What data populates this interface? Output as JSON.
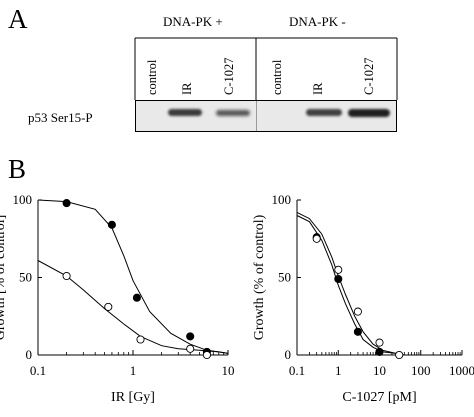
{
  "panel_a": {
    "letter": "A",
    "group1_header": "DNA-PK +",
    "group2_header": "DNA-PK -",
    "lanes": [
      "control",
      "IR",
      "C-1027",
      "control",
      "IR",
      "C-1027"
    ],
    "row_label": "p53 Ser15-P"
  },
  "panel_b": {
    "letter": "B"
  },
  "chart_data": [
    {
      "type": "scatter",
      "x_scale": "log",
      "xlim": [
        0.1,
        10
      ],
      "ylim": [
        0,
        100
      ],
      "xlabel": "IR [Gy]",
      "ylabel": "Growth [% of control]",
      "x_ticks": [
        "0.1",
        "1",
        "10"
      ],
      "y_ticks": [
        "0",
        "50",
        "100"
      ],
      "series": [
        {
          "marker": "filled",
          "points": [
            [
              0.2,
              98
            ],
            [
              0.6,
              84
            ],
            [
              1.1,
              37
            ],
            [
              4,
              12
            ],
            [
              6,
              2
            ]
          ],
          "fit": [
            [
              0.1,
              100
            ],
            [
              0.2,
              99
            ],
            [
              0.4,
              94
            ],
            [
              0.6,
              82
            ],
            [
              0.8,
              64
            ],
            [
              1.0,
              48
            ],
            [
              1.5,
              28
            ],
            [
              2.5,
              14
            ],
            [
              4,
              7
            ],
            [
              6,
              3
            ],
            [
              8,
              2
            ],
            [
              10,
              1
            ]
          ]
        },
        {
          "marker": "open",
          "points": [
            [
              0.2,
              51
            ],
            [
              0.55,
              31
            ],
            [
              1.2,
              10
            ],
            [
              4,
              4
            ],
            [
              6,
              0
            ]
          ],
          "fit": [
            [
              0.1,
              61
            ],
            [
              0.2,
              51
            ],
            [
              0.3,
              42
            ],
            [
              0.5,
              30
            ],
            [
              0.8,
              20
            ],
            [
              1.2,
              12
            ],
            [
              2,
              6
            ],
            [
              3,
              4
            ],
            [
              5,
              3
            ],
            [
              8,
              2
            ],
            [
              10,
              1
            ]
          ]
        }
      ]
    },
    {
      "type": "scatter",
      "x_scale": "log",
      "xlim": [
        0.1,
        1000
      ],
      "ylim": [
        0,
        100
      ],
      "xlabel": "C-1027 [pM]",
      "ylabel": "Growth (% of control)",
      "x_ticks": [
        "0.1",
        "1",
        "10",
        "100",
        "1000"
      ],
      "y_ticks": [
        "0",
        "50",
        "100"
      ],
      "series": [
        {
          "marker": "filled",
          "points": [
            [
              0.3,
              76
            ],
            [
              1.0,
              49
            ],
            [
              3.0,
              15
            ],
            [
              10,
              2
            ]
          ],
          "fit": [
            [
              0.1,
              90
            ],
            [
              0.2,
              86
            ],
            [
              0.4,
              74
            ],
            [
              0.7,
              58
            ],
            [
              1.0,
              45
            ],
            [
              1.5,
              33
            ],
            [
              2.5,
              20
            ],
            [
              4,
              10
            ],
            [
              7,
              5
            ],
            [
              12,
              2
            ],
            [
              25,
              1
            ],
            [
              40,
              0
            ]
          ]
        },
        {
          "marker": "open",
          "points": [
            [
              0.3,
              75
            ],
            [
              1.0,
              55
            ],
            [
              3.0,
              28
            ],
            [
              10,
              8
            ],
            [
              30,
              0
            ]
          ],
          "fit": [
            [
              0.1,
              92
            ],
            [
              0.2,
              88
            ],
            [
              0.4,
              78
            ],
            [
              0.7,
              63
            ],
            [
              1.0,
              51
            ],
            [
              1.5,
              39
            ],
            [
              2.5,
              25
            ],
            [
              4,
              15
            ],
            [
              7,
              7
            ],
            [
              12,
              3
            ],
            [
              25,
              1
            ],
            [
              40,
              0
            ]
          ]
        }
      ]
    }
  ]
}
